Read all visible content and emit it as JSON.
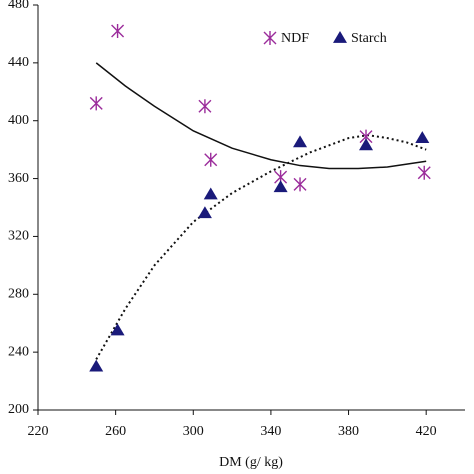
{
  "chart_data": {
    "type": "scatter",
    "x_label": "DM (g/ kg)",
    "xlim": [
      220,
      440
    ],
    "xticks": [
      220,
      260,
      300,
      340,
      380,
      420
    ],
    "ylim": [
      200,
      480
    ],
    "yticks": [
      200,
      240,
      280,
      320,
      360,
      400,
      440,
      480
    ],
    "legend": "top-right",
    "series": [
      {
        "name": "NDF",
        "color": "#9b2c9b",
        "marker": "asterisk",
        "x": [
          250,
          261,
          306,
          309,
          345,
          355,
          389,
          419
        ],
        "values": [
          412,
          462,
          410,
          373,
          361,
          356,
          389,
          364
        ]
      },
      {
        "name": "Starch",
        "color": "#1a1a7a",
        "marker": "triangle",
        "x": [
          250,
          261,
          306,
          309,
          345,
          355,
          389,
          418
        ],
        "values": [
          230,
          255,
          336,
          349,
          354,
          385,
          383,
          388
        ]
      }
    ],
    "trendlines": [
      {
        "style": "solid",
        "color": "#111111",
        "x": [
          250,
          265,
          280,
          300,
          320,
          340,
          355,
          370,
          385,
          400,
          410,
          420
        ],
        "values": [
          440,
          424,
          410,
          393,
          381,
          373,
          369,
          367,
          367,
          368,
          370,
          372
        ]
      },
      {
        "style": "dotted",
        "color": "#111111",
        "x": [
          250,
          265,
          280,
          300,
          320,
          340,
          360,
          380,
          390,
          400,
          410,
          420
        ],
        "values": [
          235,
          270,
          300,
          330,
          350,
          365,
          378,
          388,
          390,
          388,
          385,
          380
        ]
      }
    ]
  }
}
